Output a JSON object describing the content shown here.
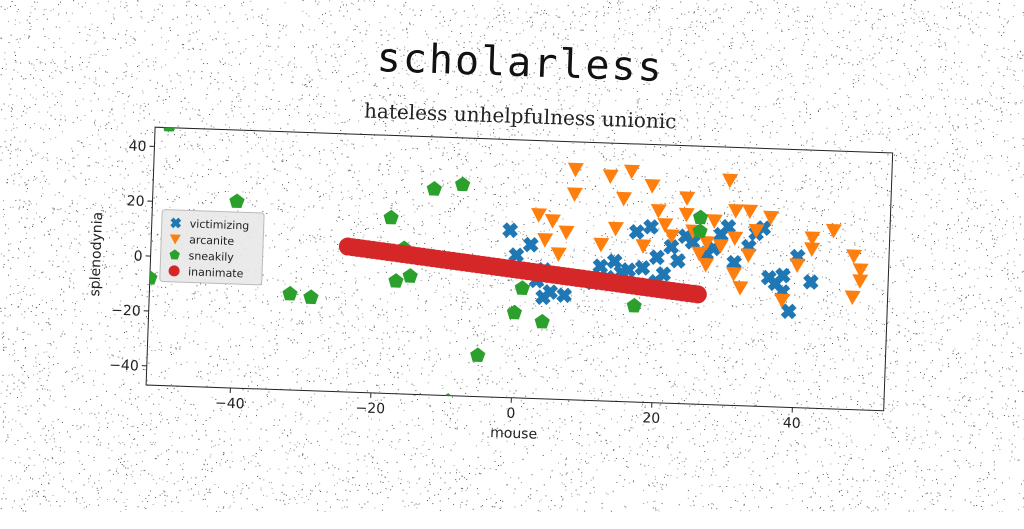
{
  "title": "scholarless",
  "subtitle": "hateless unhelpfulness unionic",
  "chart_data": {
    "type": "scatter",
    "xlabel": "mouse",
    "ylabel": "splenodynia",
    "xlim": [
      -52,
      53
    ],
    "ylim": [
      -47,
      47
    ],
    "xticks": [
      -40,
      -20,
      0,
      20,
      40
    ],
    "yticks": [
      -40,
      -20,
      0,
      20,
      40
    ],
    "grid": false,
    "legend_position": "center-left",
    "series": [
      {
        "name": "victimizing",
        "color": "#1f77b4",
        "marker": "X",
        "points": [
          [
            -1,
            14
          ],
          [
            0,
            5
          ],
          [
            2,
            9
          ],
          [
            4,
            0
          ],
          [
            3,
            -4
          ],
          [
            4,
            -10
          ],
          [
            5,
            -8
          ],
          [
            7,
            -9
          ],
          [
            9,
            -3
          ],
          [
            11,
            -4
          ],
          [
            12,
            2
          ],
          [
            13,
            -2
          ],
          [
            14,
            4
          ],
          [
            15,
            0
          ],
          [
            16,
            1
          ],
          [
            17,
            15
          ],
          [
            18,
            2
          ],
          [
            19,
            17
          ],
          [
            20,
            6
          ],
          [
            21,
            0
          ],
          [
            23,
            5
          ],
          [
            24,
            14
          ],
          [
            25,
            12
          ],
          [
            27,
            8
          ],
          [
            28,
            10
          ],
          [
            29,
            15
          ],
          [
            30,
            18
          ],
          [
            31,
            5
          ],
          [
            33,
            11
          ],
          [
            34,
            16
          ],
          [
            35,
            18
          ],
          [
            36,
            0
          ],
          [
            37,
            -2
          ],
          [
            38,
            -5
          ],
          [
            38,
            1
          ],
          [
            39,
            -12
          ],
          [
            40,
            8
          ],
          [
            42,
            -1
          ],
          [
            20,
            -3
          ],
          [
            22,
            10
          ]
        ]
      },
      {
        "name": "arcanite",
        "color": "#ff7f0e",
        "marker": "v",
        "points": [
          [
            3,
            20
          ],
          [
            5,
            18
          ],
          [
            4,
            11
          ],
          [
            6,
            6
          ],
          [
            8,
            28
          ],
          [
            8,
            37
          ],
          [
            7,
            14
          ],
          [
            12,
            10
          ],
          [
            13,
            35
          ],
          [
            14,
            16
          ],
          [
            15,
            27
          ],
          [
            16,
            37
          ],
          [
            18,
            10
          ],
          [
            19,
            32
          ],
          [
            20,
            23
          ],
          [
            21,
            18
          ],
          [
            22,
            14
          ],
          [
            24,
            28
          ],
          [
            24,
            22
          ],
          [
            25,
            16
          ],
          [
            26,
            8
          ],
          [
            27,
            4
          ],
          [
            27,
            12
          ],
          [
            28,
            20
          ],
          [
            29,
            11
          ],
          [
            30,
            35
          ],
          [
            31,
            24
          ],
          [
            31,
            1
          ],
          [
            32,
            -4
          ],
          [
            33,
            24
          ],
          [
            34,
            17
          ],
          [
            36,
            22
          ],
          [
            38,
            -8
          ],
          [
            40,
            5
          ],
          [
            42,
            15
          ],
          [
            42,
            11
          ],
          [
            45,
            18
          ],
          [
            48,
            9
          ],
          [
            49,
            4
          ],
          [
            49,
            0
          ],
          [
            48,
            -6
          ],
          [
            31,
            14
          ],
          [
            33,
            8
          ]
        ]
      },
      {
        "name": "sneakily",
        "color": "#2ca02c",
        "marker": "p",
        "points": [
          [
            -50,
            48
          ],
          [
            -54,
            -3
          ],
          [
            -52,
            -8
          ],
          [
            -40,
            21
          ],
          [
            -32,
            -12
          ],
          [
            -29,
            -13
          ],
          [
            -18,
            17
          ],
          [
            -12,
            28
          ],
          [
            -8,
            30
          ],
          [
            -16,
            6
          ],
          [
            -17,
            -6
          ],
          [
            -15,
            -4
          ],
          [
            -5,
            -32
          ],
          [
            -9,
            -49
          ],
          [
            0,
            -16
          ],
          [
            1,
            -7
          ],
          [
            4,
            -19
          ],
          [
            17,
            -12
          ],
          [
            26,
            21
          ],
          [
            26,
            16
          ]
        ]
      },
      {
        "name": "inanimate",
        "color": "#d62728",
        "marker": "o",
        "segment": {
          "x": [
            -24,
            26
          ],
          "y": [
            6,
            -7
          ]
        }
      }
    ]
  }
}
